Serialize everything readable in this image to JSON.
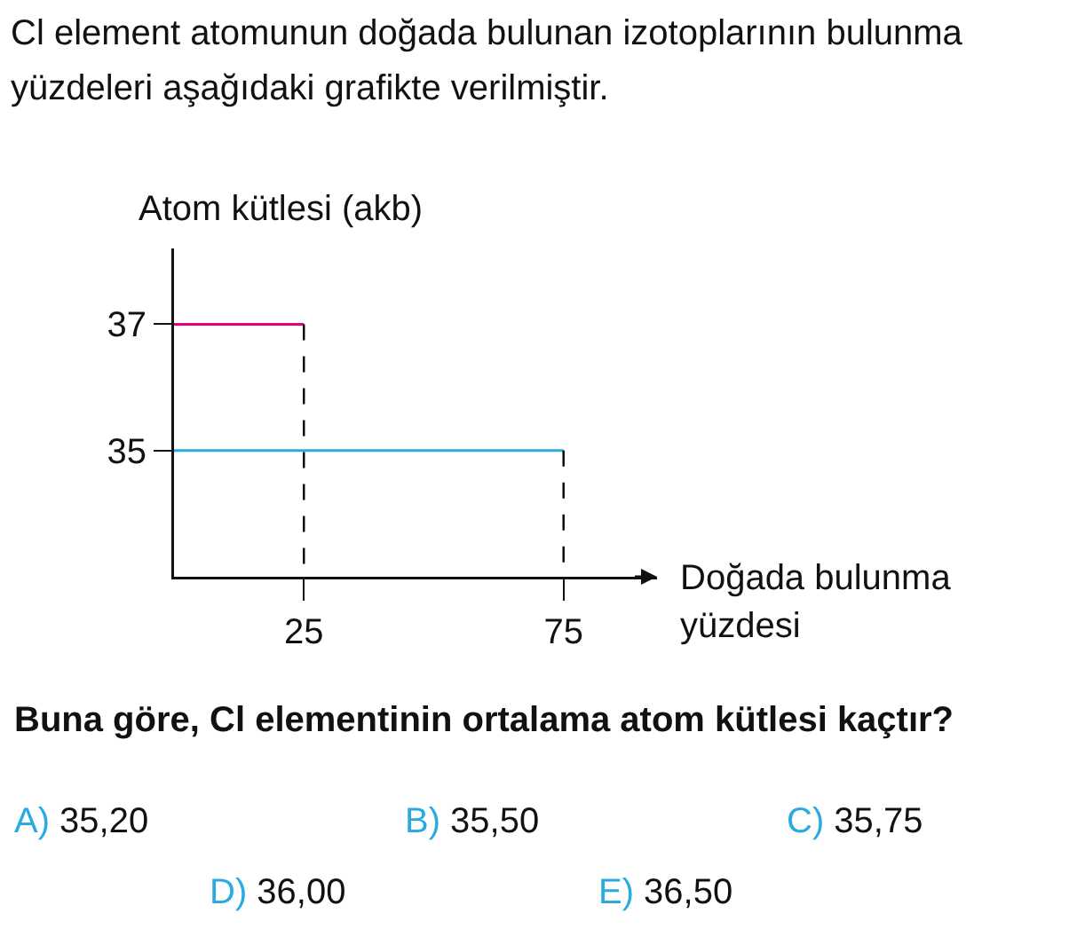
{
  "chart_data": {
    "type": "line",
    "title": "Cl element atomunun doğada bulunan izotoplarının bulunma yüzdeleri aşağıdaki grafikte verilmiştir.",
    "ylabel": "Atom kütlesi (akb)",
    "xlabel": "Doğada bulunma yüzdesi",
    "series": [
      {
        "color": "#e6007e",
        "x": [
          0,
          25
        ],
        "values": [
          37,
          37
        ]
      },
      {
        "color": "#29abe2",
        "x": [
          0,
          75
        ],
        "values": [
          35,
          35
        ]
      },
      {
        "color": "#000000",
        "x": [
          25,
          25
        ],
        "values": [
          37,
          33
        ],
        "line_style": "dashed"
      },
      {
        "color": "#000000",
        "x": [
          75,
          75
        ],
        "values": [
          35,
          33
        ],
        "line_style": "dashed"
      }
    ],
    "xlim": [
      0,
      93
    ],
    "xticks": [
      25,
      75
    ],
    "ylim": [
      33,
      38.2
    ],
    "yticks": [
      35,
      37
    ],
    "marker": "none",
    "line_style": "solid",
    "annotations": [
      "Buna göre, Cl elementinin ortalama atom kütlesi kaçtır?",
      "A) 35,20",
      "B) 35,50",
      "C) 35,75",
      "D) 36,00",
      "E) 36,50"
    ]
  }
}
